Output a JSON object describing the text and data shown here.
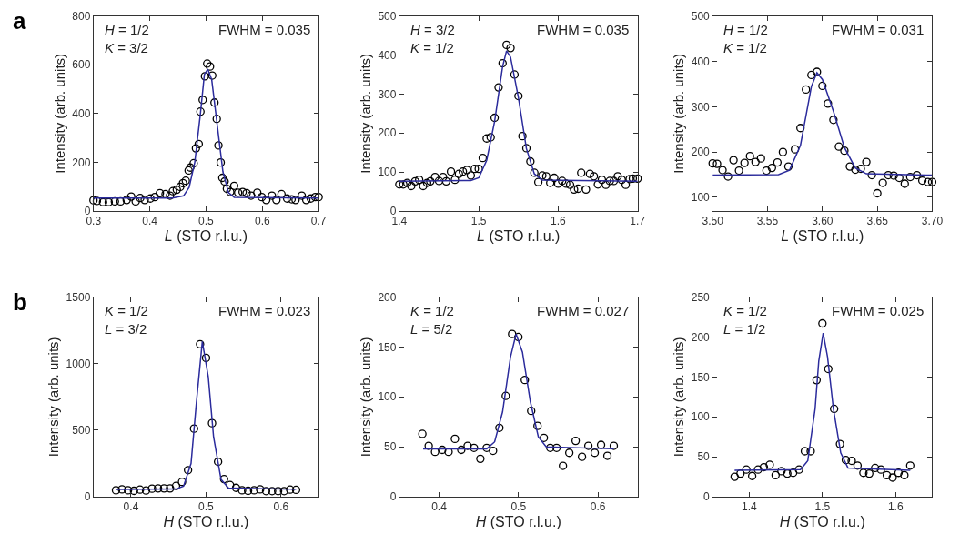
{
  "chart_data": [
    {
      "type": "scatter",
      "xlabel": "L (STO r.l.u.)",
      "ylabel": "Intensity (arb. units)",
      "annotations": [
        "H = 1/2\nK = 3/2",
        "FWHM = 0.035",
        "a"
      ],
      "xlim": [
        0.3,
        0.7
      ],
      "xticks": [
        0.3,
        0.4,
        0.5,
        0.6,
        0.7
      ],
      "ylim": [
        0,
        800
      ],
      "yticks": [
        0,
        200,
        400,
        600,
        800
      ],
      "series": [
        {
          "marker": "circle",
          "color": "#000000",
          "x": [
            0.3,
            0.306,
            0.317,
            0.327,
            0.338,
            0.348,
            0.359,
            0.367,
            0.375,
            0.383,
            0.391,
            0.401,
            0.409,
            0.418,
            0.428,
            0.436,
            0.441,
            0.448,
            0.454,
            0.459,
            0.464,
            0.469,
            0.472,
            0.478,
            0.482,
            0.487,
            0.49,
            0.494,
            0.498,
            0.502,
            0.507,
            0.511,
            0.515,
            0.519,
            0.522,
            0.526,
            0.529,
            0.533,
            0.537,
            0.543,
            0.55,
            0.557,
            0.565,
            0.572,
            0.58,
            0.591,
            0.599,
            0.607,
            0.617,
            0.625,
            0.634,
            0.644,
            0.652,
            0.659,
            0.67,
            0.678,
            0.686,
            0.694,
            0.7
          ],
          "values": [
            44,
            41,
            36,
            36,
            39,
            39,
            45,
            59,
            39,
            53,
            45,
            51,
            57,
            73,
            69,
            63,
            81,
            87,
            99,
            114,
            124,
            166,
            178,
            196,
            257,
            275,
            408,
            456,
            553,
            605,
            593,
            556,
            445,
            378,
            269,
            199,
            136,
            121,
            91,
            78,
            103,
            75,
            78,
            73,
            63,
            75,
            57,
            45,
            63,
            45,
            69,
            51,
            48,
            45,
            63,
            45,
            51,
            57,
            57
          ]
        },
        {
          "type": "line",
          "marker": "none",
          "color": "#2b2b9c",
          "x": [
            0.3,
            0.44,
            0.46,
            0.47,
            0.48,
            0.49,
            0.497,
            0.503,
            0.51,
            0.52,
            0.53,
            0.54,
            0.55,
            0.7
          ],
          "values": [
            53,
            53,
            62,
            97,
            200,
            400,
            560,
            582,
            540,
            350,
            160,
            75,
            56,
            53
          ]
        }
      ]
    },
    {
      "type": "scatter",
      "xlabel": "L (STO r.l.u.)",
      "ylabel": "Intensity (arb. units)",
      "annotations": [
        "H = 3/2\nK = 1/2",
        "FWHM = 0.035"
      ],
      "xlim": [
        1.4,
        1.7
      ],
      "xticks": [
        1.4,
        1.5,
        1.6,
        1.7
      ],
      "ylim": [
        0,
        500
      ],
      "yticks": [
        0,
        100,
        200,
        300,
        400,
        500
      ],
      "series": [
        {
          "marker": "circle",
          "color": "#000000",
          "x": [
            1.4,
            1.405,
            1.41,
            1.415,
            1.42,
            1.425,
            1.43,
            1.435,
            1.439,
            1.445,
            1.45,
            1.455,
            1.459,
            1.465,
            1.47,
            1.475,
            1.48,
            1.485,
            1.49,
            1.495,
            1.5,
            1.505,
            1.51,
            1.515,
            1.52,
            1.525,
            1.53,
            1.535,
            1.54,
            1.545,
            1.55,
            1.555,
            1.56,
            1.565,
            1.57,
            1.575,
            1.58,
            1.585,
            1.59,
            1.595,
            1.6,
            1.605,
            1.61,
            1.615,
            1.62,
            1.625,
            1.629,
            1.635,
            1.64,
            1.645,
            1.65,
            1.655,
            1.66,
            1.665,
            1.67,
            1.675,
            1.68,
            1.685,
            1.69,
            1.694,
            1.7
          ],
          "values": [
            68,
            68,
            72,
            64,
            76,
            80,
            64,
            72,
            76,
            87,
            77,
            87,
            76,
            101,
            80,
            95,
            101,
            105,
            91,
            108,
            108,
            136,
            186,
            189,
            239,
            317,
            379,
            426,
            418,
            350,
            295,
            192,
            161,
            127,
            98,
            74,
            91,
            89,
            72,
            85,
            70,
            77,
            70,
            67,
            55,
            57,
            98,
            55,
            95,
            89,
            68,
            80,
            67,
            77,
            77,
            89,
            80,
            67,
            82,
            83,
            83
          ]
        },
        {
          "type": "line",
          "marker": "none",
          "color": "#2b2b9c",
          "x": [
            1.4,
            1.49,
            1.5,
            1.51,
            1.52,
            1.53,
            1.535,
            1.54,
            1.55,
            1.56,
            1.57,
            1.58,
            1.7
          ],
          "values": [
            76,
            78,
            85,
            130,
            230,
            370,
            411,
            395,
            290,
            160,
            95,
            79,
            76
          ]
        }
      ]
    },
    {
      "type": "scatter",
      "xlabel": "L (STO r.l.u.)",
      "ylabel": "Intensity (arb. units)",
      "annotations": [
        "H = 1/2\nK = 1/2",
        "FWHM = 0.031"
      ],
      "xlim": [
        3.5,
        3.7
      ],
      "xticks": [
        {
          "value": 3.5,
          "label": "3.50"
        },
        3.55,
        {
          "value": 3.6,
          "label": "3.60"
        },
        3.65,
        {
          "value": 3.7,
          "label": "3.70"
        }
      ],
      "ylim": [
        70,
        500
      ],
      "yticks": [
        100,
        200,
        300,
        400,
        500
      ],
      "series": [
        {
          "marker": "circle",
          "color": "#000000",
          "x": [
            3.5,
            3.504,
            3.509,
            3.514,
            3.519,
            3.524,
            3.529,
            3.534,
            3.539,
            3.544,
            3.549,
            3.554,
            3.559,
            3.564,
            3.569,
            3.575,
            3.58,
            3.585,
            3.59,
            3.595,
            3.6,
            3.605,
            3.61,
            3.615,
            3.62,
            3.625,
            3.63,
            3.635,
            3.64,
            3.645,
            3.65,
            3.655,
            3.66,
            3.665,
            3.67,
            3.675,
            3.68,
            3.686,
            3.691,
            3.696,
            3.7
          ],
          "values": [
            175,
            174,
            160,
            146,
            182,
            159,
            176,
            191,
            178,
            186,
            159,
            165,
            177,
            200,
            168,
            206,
            253,
            338,
            370,
            377,
            346,
            307,
            271,
            212,
            203,
            168,
            161,
            163,
            178,
            149,
            109,
            132,
            149,
            148,
            143,
            130,
            145,
            149,
            137,
            134,
            134
          ]
        },
        {
          "type": "line",
          "marker": "none",
          "color": "#2b2b9c",
          "x": [
            3.5,
            3.56,
            3.57,
            3.58,
            3.585,
            3.59,
            3.595,
            3.6,
            3.61,
            3.62,
            3.63,
            3.64,
            3.7
          ],
          "values": [
            149,
            150,
            160,
            215,
            280,
            345,
            375,
            360,
            290,
            210,
            165,
            152,
            149
          ]
        }
      ]
    },
    {
      "type": "scatter",
      "xlabel": "H (STO r.l.u.)",
      "ylabel": "Intensity (arb. units)",
      "annotations": [
        "K = 1/2\nL = 3/2",
        "FWHM = 0.023",
        "b"
      ],
      "xlim": [
        0.35,
        0.65
      ],
      "xticks": [
        0.4,
        0.5,
        0.6
      ],
      "ylim": [
        0,
        1500
      ],
      "yticks": [
        0,
        500,
        1000,
        1500
      ],
      "series": [
        {
          "marker": "circle",
          "color": "#000000",
          "x": [
            0.38,
            0.388,
            0.396,
            0.404,
            0.412,
            0.42,
            0.428,
            0.436,
            0.444,
            0.452,
            0.46,
            0.468,
            0.476,
            0.484,
            0.492,
            0.5,
            0.508,
            0.516,
            0.524,
            0.532,
            0.54,
            0.548,
            0.556,
            0.564,
            0.572,
            0.58,
            0.588,
            0.596,
            0.604,
            0.612,
            0.62
          ],
          "values": [
            49,
            56,
            49,
            45,
            54,
            47,
            61,
            63,
            63,
            63,
            81,
            112,
            200,
            512,
            1146,
            1043,
            553,
            263,
            133,
            88,
            67,
            49,
            45,
            49,
            56,
            43,
            43,
            43,
            43,
            54,
            52
          ]
        },
        {
          "type": "line",
          "marker": "none",
          "color": "#2b2b9c",
          "x": [
            0.38,
            0.46,
            0.47,
            0.48,
            0.487,
            0.495,
            0.503,
            0.51,
            0.52,
            0.53,
            0.62
          ],
          "values": [
            56,
            58,
            80,
            250,
            700,
            1166,
            900,
            450,
            130,
            65,
            56
          ]
        }
      ]
    },
    {
      "type": "scatter",
      "xlabel": "H (STO r.l.u.)",
      "ylabel": "Intensity (arb. units)",
      "annotations": [
        "K = 1/2\nL = 5/2",
        "FWHM = 0.027"
      ],
      "xlim": [
        0.35,
        0.65
      ],
      "xticks": [
        0.4,
        0.5,
        0.6
      ],
      "ylim": [
        0,
        200
      ],
      "yticks": [
        0,
        50,
        100,
        150,
        200
      ],
      "series": [
        {
          "marker": "circle",
          "color": "#000000",
          "x": [
            0.379,
            0.387,
            0.395,
            0.404,
            0.412,
            0.42,
            0.428,
            0.436,
            0.444,
            0.452,
            0.46,
            0.468,
            0.476,
            0.484,
            0.492,
            0.5,
            0.508,
            0.516,
            0.524,
            0.532,
            0.54,
            0.548,
            0.556,
            0.564,
            0.572,
            0.58,
            0.588,
            0.596,
            0.604,
            0.612,
            0.62
          ],
          "values": [
            63,
            51,
            45,
            47,
            45,
            58,
            47,
            51,
            49,
            38,
            49,
            46,
            69,
            101,
            163,
            160,
            117,
            86,
            71,
            59,
            49,
            49,
            31,
            44,
            56,
            40,
            51,
            44,
            52,
            41,
            51
          ]
        },
        {
          "type": "line",
          "marker": "none",
          "color": "#2b2b9c",
          "x": [
            0.38,
            0.46,
            0.47,
            0.48,
            0.49,
            0.497,
            0.505,
            0.515,
            0.525,
            0.535,
            0.62
          ],
          "values": [
            48,
            48,
            55,
            85,
            140,
            163,
            145,
            95,
            60,
            50,
            48
          ]
        }
      ]
    },
    {
      "type": "scatter",
      "xlabel": "H (STO r.l.u.)",
      "ylabel": "Intensity (arb. units)",
      "annotations": [
        "K = 1/2\nL = 1/2",
        "FWHM = 0.025"
      ],
      "xlim": [
        1.35,
        1.65
      ],
      "xticks": [
        1.4,
        1.5,
        1.6
      ],
      "ylim": [
        0,
        250
      ],
      "yticks": [
        0,
        50,
        100,
        150,
        200,
        250
      ],
      "series": [
        {
          "marker": "circle",
          "color": "#000000",
          "x": [
            1.38,
            1.388,
            1.396,
            1.404,
            1.412,
            1.42,
            1.428,
            1.436,
            1.444,
            1.452,
            1.46,
            1.468,
            1.476,
            1.484,
            1.492,
            1.5,
            1.508,
            1.516,
            1.524,
            1.532,
            1.54,
            1.548,
            1.556,
            1.564,
            1.572,
            1.58,
            1.588,
            1.596,
            1.604,
            1.612,
            1.62
          ],
          "values": [
            25,
            29,
            34,
            26,
            34,
            37,
            40,
            27,
            32,
            29,
            30,
            34,
            57,
            57,
            146,
            217,
            160,
            110,
            66,
            46,
            45,
            39,
            30,
            29,
            36,
            34,
            27,
            24,
            30,
            27,
            39
          ]
        },
        {
          "type": "line",
          "marker": "none",
          "color": "#2b2b9c",
          "x": [
            1.38,
            1.47,
            1.48,
            1.49,
            1.495,
            1.501,
            1.507,
            1.515,
            1.525,
            1.535,
            1.62
          ],
          "values": [
            33,
            34,
            45,
            110,
            170,
            205,
            175,
            110,
            55,
            36,
            33
          ]
        }
      ]
    }
  ]
}
